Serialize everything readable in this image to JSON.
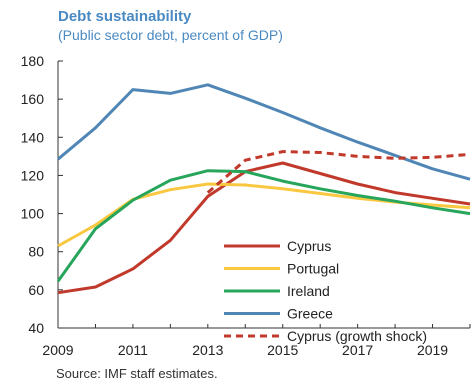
{
  "chart_data": {
    "type": "line",
    "title": "Debt sustainability",
    "subtitle": "(Public sector debt, percent of GDP)",
    "source": "Source: IMF staff estimates.",
    "x": [
      2009,
      2010,
      2011,
      2012,
      2013,
      2014,
      2015,
      2016,
      2017,
      2018,
      2019,
      2020
    ],
    "xlim": [
      2009,
      2020
    ],
    "xticks": [
      "2009",
      "2011",
      "2013",
      "2015",
      "2017",
      "2019"
    ],
    "ylim": [
      40,
      180
    ],
    "yticks": [
      "40",
      "60",
      "80",
      "100",
      "120",
      "140",
      "160",
      "180"
    ],
    "legend_position": "bottom-right",
    "series": [
      {
        "name": "Cyprus",
        "color": "#c0392b",
        "dash": "solid",
        "values": [
          58.5,
          61.5,
          71,
          86,
          109,
          122,
          126.5,
          121,
          115.5,
          111,
          108,
          105
        ]
      },
      {
        "name": "Portugal",
        "color": "#f9c840",
        "dash": "solid",
        "values": [
          83,
          94,
          107.5,
          112.5,
          115.5,
          115,
          113,
          110.5,
          108,
          106,
          104.5,
          103
        ]
      },
      {
        "name": "Ireland",
        "color": "#27a55b",
        "dash": "solid",
        "values": [
          64.5,
          92,
          107,
          117.5,
          122.5,
          122,
          117,
          113,
          109.5,
          106.5,
          103,
          100
        ]
      },
      {
        "name": "Greece",
        "color": "#4f86b5",
        "dash": "solid",
        "values": [
          128.5,
          145,
          165,
          163,
          167.5,
          160.5,
          153,
          145,
          137.5,
          130.5,
          123.5,
          118
        ]
      },
      {
        "name": "Cyprus (growth shock)",
        "color": "#c0392b",
        "dash": "dashed",
        "values": [
          null,
          null,
          null,
          null,
          111,
          128,
          132.5,
          132,
          130,
          129,
          129.5,
          131
        ]
      }
    ]
  }
}
